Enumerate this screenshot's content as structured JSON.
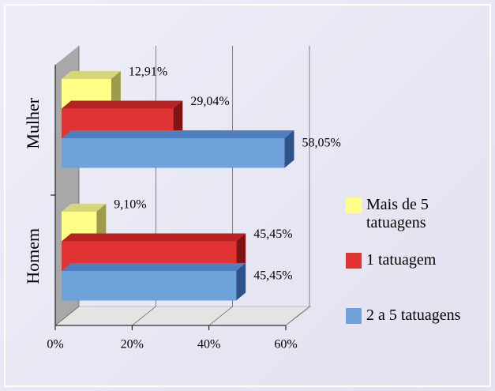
{
  "chart_data": {
    "type": "bar3d_horizontal",
    "categories": [
      "Mulher",
      "Homem"
    ],
    "series": [
      {
        "name": "Mais de 5 tatuagens",
        "color": "#ffff88",
        "values": [
          12.91,
          9.1
        ],
        "value_labels": [
          "12,91%",
          "9,10%"
        ]
      },
      {
        "name": "1 tatuagem",
        "color": "#e03333",
        "values": [
          29.04,
          45.45
        ],
        "value_labels": [
          "29,04%",
          "45,45%"
        ]
      },
      {
        "name": "2 a 5 tatuagens",
        "color": "#70a2da",
        "values": [
          58.05,
          45.45
        ],
        "value_labels": [
          "58,05%",
          "45,45%"
        ]
      }
    ],
    "xlim": [
      0,
      60
    ],
    "xticks": [
      {
        "value": 0,
        "label": "0%"
      },
      {
        "value": 20,
        "label": "20%"
      },
      {
        "value": 40,
        "label": "40%"
      },
      {
        "value": 60,
        "label": "60%"
      }
    ],
    "grid": true,
    "legend": "right"
  }
}
